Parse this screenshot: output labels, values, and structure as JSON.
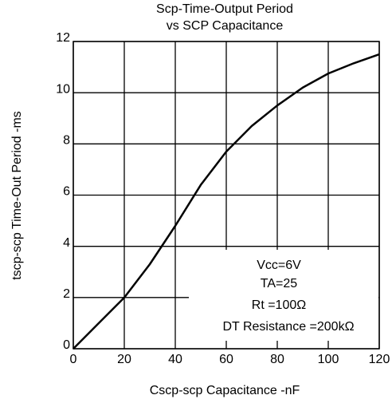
{
  "chart_data": {
    "type": "line",
    "title": [
      "Scp-Time-Output Period",
      "vs SCP Capacitance"
    ],
    "xlabel": "Cscp-scp Capacitance -nF",
    "ylabel": "tscp-scp Time-Out Period -ms",
    "x": [
      0,
      10,
      20,
      30,
      40,
      50,
      60,
      70,
      80,
      90,
      100,
      110,
      120
    ],
    "series": [
      {
        "name": "Time-Out Period",
        "color": "#000000",
        "values": [
          0,
          1.0,
          2.0,
          3.3,
          4.8,
          6.4,
          7.7,
          8.7,
          9.5,
          10.2,
          10.75,
          11.15,
          11.5
        ]
      }
    ],
    "xlim": [
      0,
      120
    ],
    "xticks": [
      0,
      20,
      40,
      60,
      80,
      100,
      120
    ],
    "ylim": [
      0,
      12
    ],
    "yticks": [
      0,
      2,
      4,
      6,
      8,
      10,
      12
    ],
    "grid": true,
    "annotations": [
      "Vcc=6V",
      "TA=25",
      "Rt =100Ω",
      "DT Resistance =200kΩ"
    ]
  }
}
